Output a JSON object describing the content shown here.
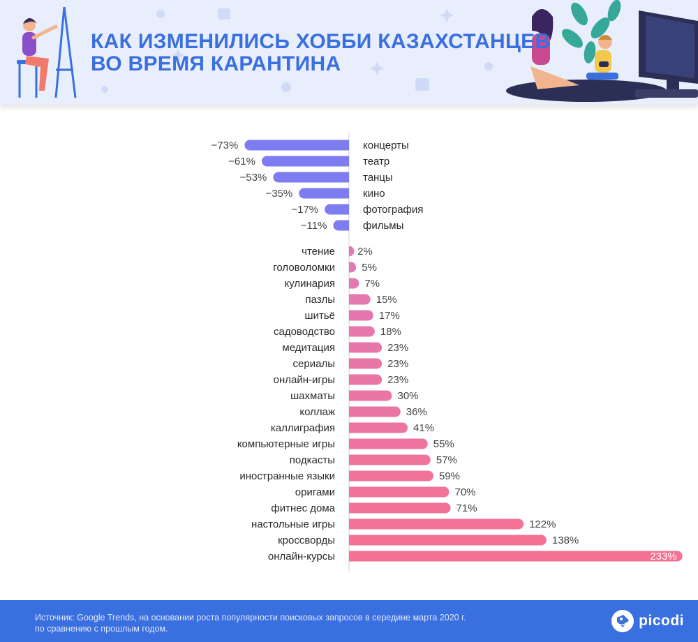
{
  "header": {
    "title_line1": "КАК ИЗМЕНИЛИСЬ ХОББИ КАЗАХСТАНЦЕВ",
    "title_line2": "ВО ВРЕМЯ КАРАНТИНА"
  },
  "colors": {
    "header_bg": "#e8eefb",
    "title": "#3a6fe0",
    "negative_bar": "#7d7cf0",
    "positive_bar_start": "#e07ab5",
    "positive_bar_end": "#f57191",
    "footer_bg": "#3a6fe0"
  },
  "chart_data": {
    "type": "bar",
    "orientation": "horizontal",
    "axis": "diverging from zero",
    "negative": {
      "categories": [
        "концерты",
        "театр",
        "танцы",
        "кино",
        "фотография",
        "фильмы"
      ],
      "values": [
        -73,
        -61,
        -53,
        -35,
        -17,
        -11
      ],
      "labels": [
        "−73%",
        "−61%",
        "−53%",
        "−35%",
        "−17%",
        "−11%"
      ]
    },
    "positive": {
      "categories": [
        "чтение",
        "головоломки",
        "кулинария",
        "пазлы",
        "шитьё",
        "садоводство",
        "медитация",
        "сериалы",
        "онлайн-игры",
        "шахматы",
        "коллаж",
        "каллиграфия",
        "компьютерные игры",
        "подкасты",
        "иностранные языки",
        "оригами",
        "фитнес дома",
        "настольные игры",
        "кроссворды",
        "онлайн-курсы"
      ],
      "values": [
        2,
        5,
        7,
        15,
        17,
        18,
        23,
        23,
        23,
        30,
        36,
        41,
        55,
        57,
        59,
        70,
        71,
        122,
        138,
        233
      ],
      "labels": [
        "2%",
        "5%",
        "7%",
        "15%",
        "17%",
        "18%",
        "23%",
        "23%",
        "23%",
        "30%",
        "36%",
        "41%",
        "55%",
        "57%",
        "59%",
        "70%",
        "71%",
        "122%",
        "138%",
        "233%"
      ]
    }
  },
  "footer": {
    "source_line1": "Источник: Google Trends, на основании роста популярности поисковых запросов в середине марта 2020 г.",
    "source_line2": "по сравнению с прошлым годом.",
    "logo_text": "picodi",
    "logo_icon": "picodi-tag-icon"
  }
}
